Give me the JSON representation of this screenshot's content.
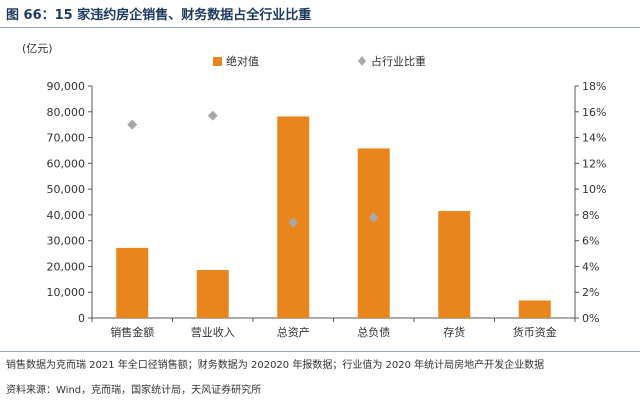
{
  "header": {
    "title": "图 66：15 家违约房企销售、财务数据占全行业比重"
  },
  "chart_data": {
    "type": "bar",
    "categories": [
      "销售金额",
      "营业收入",
      "总资产",
      "总负债",
      "存货",
      "货币资金"
    ],
    "left_axis_unit": "(亿元)",
    "left_axis": {
      "min": 0,
      "max": 90000,
      "step": 10000,
      "ticks": [
        "0",
        "10,000",
        "20,000",
        "30,000",
        "40,000",
        "50,000",
        "60,000",
        "70,000",
        "80,000",
        "90,000"
      ]
    },
    "right_axis": {
      "min": 0,
      "max": 18,
      "step": 2,
      "ticks": [
        "0%",
        "2%",
        "4%",
        "6%",
        "8%",
        "10%",
        "12%",
        "14%",
        "16%",
        "18%"
      ]
    },
    "series": [
      {
        "name": "绝对值",
        "type": "bar",
        "axis": "left",
        "values": [
          27200,
          18600,
          78200,
          65800,
          41500,
          6800
        ]
      },
      {
        "name": "占行业比重",
        "type": "scatter",
        "axis": "right",
        "values": [
          15.0,
          15.7,
          7.4,
          7.8,
          null,
          null
        ]
      }
    ],
    "legend": "top-center",
    "grid": false,
    "colors": {
      "bar": "#E8851D",
      "marker": "#A8A8A8",
      "axis": "#555555"
    }
  },
  "footer": {
    "note": "销售数据为克而瑞 2021 年全口径销售额；财务数据为 202020 年报数据；行业值为 2020 年统计局房地产开发企业数据",
    "source": "资料来源：Wind，克而瑞，国家统计局，天风证券研究所"
  }
}
